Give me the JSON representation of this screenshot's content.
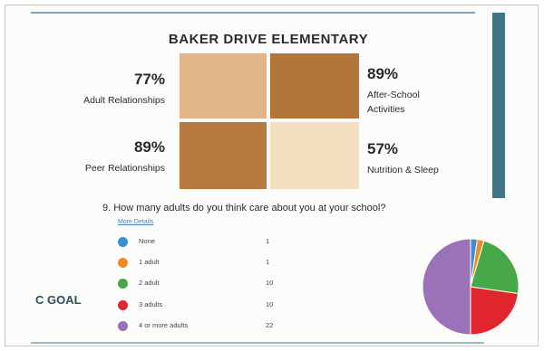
{
  "title": "BAKER DRIVE ELEMENTARY",
  "tiles": [
    {
      "percent": "77%",
      "label": "Adult Relationships",
      "color": "#e1b588"
    },
    {
      "percent": "89%",
      "label": "After-School Activities",
      "label_line1": "After-School",
      "label_line2": "Activities",
      "color": "#b3763a"
    },
    {
      "percent": "89%",
      "label": "Peer Relationships",
      "color": "#b8793e"
    },
    {
      "percent": "57%",
      "label": "Nutrition & Sleep",
      "color": "#f4dfc1"
    }
  ],
  "question": "9.  How many adults do you think care about you at your school?",
  "more_details": "More Details",
  "responses": [
    {
      "label": "None",
      "value": "1",
      "color": "#3a8fd0"
    },
    {
      "label": "1 adult",
      "value": "1",
      "color": "#ee8a2a"
    },
    {
      "label": "2 adult",
      "value": "10",
      "color": "#46a846"
    },
    {
      "label": "3 adults",
      "value": "10",
      "color": "#e0262c"
    },
    {
      "label": "4 or more adults",
      "value": "22",
      "color": "#9b72b8"
    }
  ],
  "goal_fragment": "C GOAL",
  "chart_data": {
    "type": "pie",
    "categories": [
      "None",
      "1 adult",
      "2 adult",
      "3 adults",
      "4 or more adults"
    ],
    "values": [
      1,
      1,
      10,
      10,
      22
    ],
    "colors": [
      "#3a8fd0",
      "#ee8a2a",
      "#46a846",
      "#e0262c",
      "#9b72b8"
    ]
  }
}
